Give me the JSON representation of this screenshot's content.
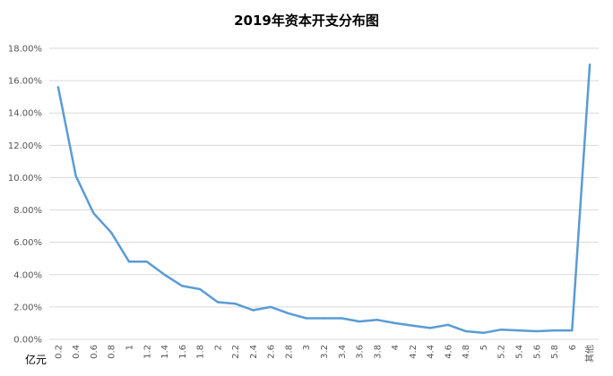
{
  "chart_data": {
    "type": "line",
    "title": "2019年资本开支分布图",
    "xlabel": "亿元",
    "ylabel": "",
    "ylim": [
      0,
      18
    ],
    "yticks": [
      "0.00%",
      "2.00%",
      "4.00%",
      "6.00%",
      "8.00%",
      "10.00%",
      "12.00%",
      "14.00%",
      "16.00%",
      "18.00%"
    ],
    "grid": true,
    "line_color": "#5b9bd5",
    "categories": [
      "0.2",
      "0.4",
      "0.6",
      "0.8",
      "1",
      "1.2",
      "1.4",
      "1.6",
      "1.8",
      "2",
      "2.2",
      "2.4",
      "2.6",
      "2.8",
      "3",
      "3.2",
      "3.4",
      "3.6",
      "3.8",
      "4",
      "4.2",
      "4.4",
      "4.6",
      "4.8",
      "5",
      "5.2",
      "5.4",
      "5.6",
      "5.8",
      "6",
      "其他"
    ],
    "series": [
      {
        "values": [
          15.6,
          10.1,
          7.8,
          6.6,
          4.8,
          4.8,
          4.0,
          3.3,
          3.1,
          2.3,
          2.2,
          1.8,
          2.0,
          1.6,
          1.3,
          1.3,
          1.3,
          1.1,
          1.2,
          1.0,
          0.85,
          0.7,
          0.9,
          0.5,
          0.4,
          0.6,
          0.55,
          0.5,
          0.55,
          0.55,
          17.0
        ]
      }
    ]
  }
}
